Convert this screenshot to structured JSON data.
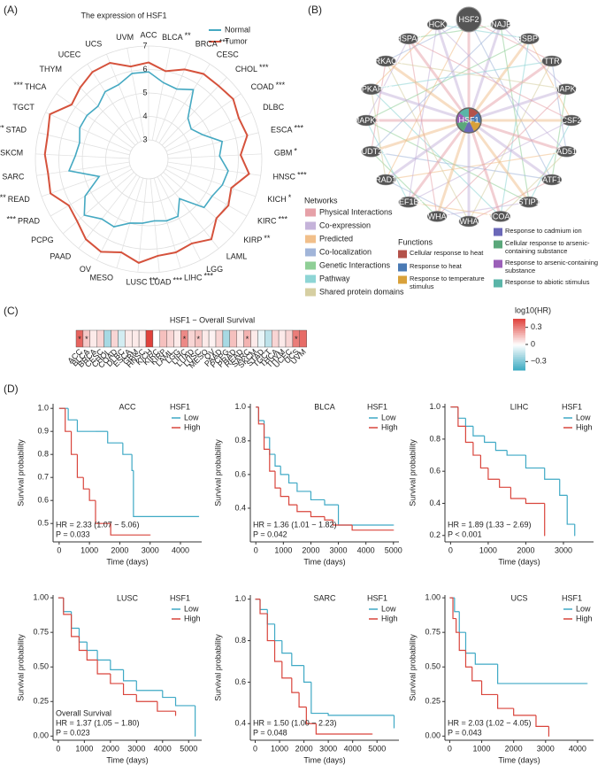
{
  "chart_data": [
    {
      "type": "radar",
      "panel_label": "(A)",
      "title": "The expression of HSF1",
      "categories": [
        "ACC",
        "BLCA",
        "BRCA",
        "CESC",
        "CHOL",
        "COAD",
        "DLBC",
        "ESCA",
        "GBM",
        "HNSC",
        "KICH",
        "KIRC",
        "KIRP",
        "LAML",
        "LGG",
        "LIHC",
        "LUAD",
        "LUSC",
        "MESO",
        "OV",
        "PAAD",
        "PCPG",
        "PRAD",
        "READ",
        "SARC",
        "SKCM",
        "STAD",
        "TGCT",
        "THCA",
        "THYM",
        "UCEC",
        "UCS",
        "UVM"
      ],
      "significance": [
        null,
        "**",
        "***",
        null,
        "***",
        "***",
        null,
        "***",
        "*",
        "***",
        "*",
        "***",
        "**",
        null,
        null,
        "***",
        "***",
        "***",
        null,
        null,
        null,
        null,
        "***",
        "***",
        null,
        null,
        "***",
        null,
        "***",
        null,
        null,
        null,
        null
      ],
      "rlim": [
        3,
        7
      ],
      "rticks": [
        3,
        4,
        5,
        6,
        7
      ],
      "series": [
        {
          "name": "Normal",
          "color": "#45a9c2",
          "values": [
            5.9,
            5.5,
            5.4,
            5.7,
            4.6,
            4.4,
            4.7,
            5.4,
            5.2,
            5.6,
            5.5,
            5.3,
            5.3,
            4.3,
            4.9,
            4.9,
            4.8,
            4.9,
            5.0,
            5.4,
            5.4,
            5.8,
            5.3,
            4.4,
            5.6,
            5.3,
            5.2,
            5.4,
            5.4,
            5.3,
            5.6,
            5.6,
            5.9
          ]
        },
        {
          "name": "Tumor",
          "color": "#d5523c",
          "values": [
            6.3,
            6.0,
            6.3,
            6.5,
            6.5,
            6.6,
            6.4,
            6.5,
            6.1,
            6.5,
            5.9,
            6.1,
            6.0,
            6.5,
            6.2,
            6.3,
            6.3,
            6.6,
            6.3,
            6.6,
            6.5,
            6.2,
            6.1,
            6.6,
            6.5,
            6.6,
            6.6,
            6.8,
            6.2,
            6.4,
            6.6,
            6.6,
            6.2
          ]
        }
      ]
    },
    {
      "type": "network",
      "panel_label": "(B)",
      "center": "HSF1",
      "nodes": [
        "HSF2",
        "DNAJB1",
        "HSBP1",
        "TTR",
        "MAPK8",
        "CSF2",
        "RAD51B",
        "ATF1",
        "STIP1",
        "NCOA6",
        "YWHAE",
        "YWHAB",
        "EEF1B2",
        "RAD1",
        "NUDT21",
        "MAPK3",
        "MAPKAPK2",
        "PRKACA",
        "HSPA8",
        "HCK"
      ],
      "networks_title": "Networks",
      "networks": [
        {
          "name": "Physical Interactions",
          "color": "#e6a1a8"
        },
        {
          "name": "Co-expression",
          "color": "#c5b3da"
        },
        {
          "name": "Predicted",
          "color": "#f1bf8a"
        },
        {
          "name": "Co-localization",
          "color": "#a1b5d9"
        },
        {
          "name": "Genetic Interactions",
          "color": "#8fcf96"
        },
        {
          "name": "Pathway",
          "color": "#8ed5d5"
        },
        {
          "name": "Shared protein domains",
          "color": "#d6cfa2"
        }
      ],
      "functions_title": "Functions",
      "functions": [
        {
          "name": "Cellular response to heat",
          "color": "#b4524a"
        },
        {
          "name": "Response to heat",
          "color": "#4a7ab4"
        },
        {
          "name": "Response to temperature stimulus",
          "color": "#d9a13a"
        },
        {
          "name": "Response to cadmium ion",
          "color": "#6b68b8"
        },
        {
          "name": "Cellular response to arsenic-containing substance",
          "color": "#5aa77a"
        },
        {
          "name": "Response to arsenic-containing substance",
          "color": "#9b5fb8"
        },
        {
          "name": "Response to abiotic stimulus",
          "color": "#5ab5a8"
        }
      ]
    },
    {
      "type": "heatmap",
      "panel_label": "(C)",
      "title": "HSF1 − Overall Survival",
      "categories": [
        "ACC",
        "BLCA",
        "BRCA",
        "CESC",
        "CHOL",
        "COAD",
        "DLBC",
        "ESCA",
        "GBM",
        "HNSC",
        "KICH",
        "KIRC",
        "KIRP",
        "LAML",
        "LGG",
        "LIHC",
        "LUAD",
        "LUSC",
        "MESO",
        "OV",
        "PAAD",
        "PCPG",
        "PRAD",
        "READ",
        "SARC",
        "SKCM",
        "STAD",
        "TGCT",
        "THCA",
        "THYM",
        "UCEC",
        "UCS",
        "UVM"
      ],
      "values": [
        0.37,
        0.13,
        0.05,
        0.1,
        -0.2,
        0.1,
        -0.1,
        0.05,
        0.05,
        0.05,
        0.45,
        0.0,
        0.15,
        0.1,
        0.05,
        0.28,
        0.1,
        0.14,
        0.05,
        0.03,
        0.1,
        -0.2,
        0.15,
        0.05,
        0.18,
        0.05,
        -0.05,
        -0.15,
        0.1,
        0.05,
        0.1,
        0.31,
        0.35
      ],
      "significance": [
        "*",
        "*",
        null,
        null,
        null,
        null,
        null,
        null,
        null,
        null,
        null,
        null,
        null,
        null,
        null,
        "*",
        null,
        "*",
        null,
        null,
        null,
        null,
        null,
        null,
        "*",
        null,
        null,
        null,
        null,
        null,
        null,
        "*",
        null
      ],
      "colorbar_title": "log10(HR)",
      "clim": [
        -0.45,
        0.45
      ],
      "cticks": [
        0.3,
        0,
        {
          "value": -0.3,
          "label": "−0.3"
        }
      ],
      "colors": {
        "low": "#3aa9c1",
        "mid": "#ffffff",
        "high": "#e0423c"
      }
    },
    {
      "type": "km",
      "panel_label": "(D)",
      "title": "ACC",
      "legend_title": "HSF1",
      "xlabel": "Time (days)",
      "ylabel": "Survival probability",
      "xlim": [
        -200,
        4700
      ],
      "xticks": [
        0,
        1000,
        2000,
        3000,
        4000
      ],
      "ylim": [
        0.42,
        1.02
      ],
      "yticks": [
        0.5,
        0.6,
        0.7,
        0.8,
        0.9,
        {
          "value": 1,
          "label": "1.0"
        }
      ],
      "series": [
        {
          "name": "Low",
          "color": "#3fa9c5",
          "x": [
            0,
            300,
            600,
            1200,
            1600,
            2100,
            2400,
            2450,
            4600
          ],
          "values": [
            1,
            0.95,
            0.9,
            0.9,
            0.85,
            0.8,
            0.73,
            0.53,
            0.53
          ]
        },
        {
          "name": "High",
          "color": "#d9453c",
          "x": [
            0,
            200,
            400,
            600,
            800,
            1000,
            1200,
            1600,
            1700,
            3000
          ],
          "values": [
            1,
            0.9,
            0.8,
            0.7,
            0.65,
            0.6,
            0.5,
            0.5,
            0.45,
            0.45
          ]
        }
      ],
      "annotations": [
        "HR = 2.33 (1.07 − 5.06)",
        "P = 0.033"
      ]
    },
    {
      "type": "km",
      "title": "BLCA",
      "legend_title": "HSF1",
      "xlabel": "Time (days)",
      "ylabel": "Survival probability",
      "xlim": [
        -200,
        5200
      ],
      "xticks": [
        0,
        1000,
        2000,
        3000,
        4000,
        5000
      ],
      "ylim": [
        0.2,
        1.02
      ],
      "yticks": [
        0.4,
        0.6,
        0.8,
        {
          "value": 1,
          "label": "1.0"
        }
      ],
      "series": [
        {
          "name": "Low",
          "color": "#3fa9c5",
          "x": [
            0,
            100,
            300,
            500,
            700,
            900,
            1200,
            1500,
            2000,
            2500,
            3000,
            5000
          ],
          "values": [
            1,
            0.92,
            0.82,
            0.72,
            0.65,
            0.6,
            0.55,
            0.5,
            0.45,
            0.42,
            0.3,
            0.3
          ]
        },
        {
          "name": "High",
          "color": "#d9453c",
          "x": [
            0,
            100,
            300,
            500,
            700,
            900,
            1200,
            1500,
            2000,
            2500,
            2800,
            3500,
            5000
          ],
          "values": [
            1,
            0.9,
            0.75,
            0.62,
            0.52,
            0.47,
            0.42,
            0.38,
            0.35,
            0.33,
            0.3,
            0.27,
            0.27
          ]
        }
      ],
      "annotations": [
        "HR = 1.36 (1.01 − 1.82)",
        "P = 0.042"
      ]
    },
    {
      "type": "km",
      "title": "LIHC",
      "legend_title": "HSF1",
      "xlabel": "Time (days)",
      "ylabel": "Survival probability",
      "xlim": [
        -150,
        3800
      ],
      "xticks": [
        0,
        1000,
        2000,
        3000
      ],
      "ylim": [
        0.16,
        1.02
      ],
      "yticks": [
        0.2,
        0.4,
        0.6,
        0.8,
        {
          "value": 1,
          "label": "1.0"
        }
      ],
      "series": [
        {
          "name": "Low",
          "color": "#3fa9c5",
          "x": [
            0,
            200,
            400,
            600,
            900,
            1200,
            1500,
            2000,
            2500,
            2900,
            3100,
            3300
          ],
          "values": [
            1,
            0.93,
            0.88,
            0.82,
            0.78,
            0.73,
            0.7,
            0.62,
            0.55,
            0.45,
            0.27,
            0.2
          ]
        },
        {
          "name": "High",
          "color": "#d9453c",
          "x": [
            0,
            200,
            400,
            600,
            800,
            1000,
            1300,
            1600,
            2000,
            2400,
            2500
          ],
          "values": [
            1,
            0.88,
            0.78,
            0.7,
            0.62,
            0.55,
            0.5,
            0.43,
            0.4,
            0.4,
            0.2
          ]
        }
      ],
      "annotations": [
        "HR = 1.89 (1.33 − 2.69)",
        "P < 0.001"
      ]
    },
    {
      "type": "km",
      "title": "LUSC",
      "legend_title": "HSF1",
      "xlabel": "Time (days)",
      "ylabel": "Survival probability",
      "xlim": [
        -200,
        5500
      ],
      "xticks": [
        0,
        1000,
        2000,
        3000,
        4000,
        5000
      ],
      "ylim": [
        -0.03,
        1.02
      ],
      "yticks": [
        {
          "value": 0,
          "label": "0.00"
        },
        0.25,
        {
          "value": 0.5,
          "label": "0.50"
        },
        0.75,
        {
          "value": 1,
          "label": "1.00"
        }
      ],
      "series": [
        {
          "name": "Low",
          "color": "#3fa9c5",
          "x": [
            0,
            200,
            500,
            800,
            1100,
            1500,
            2000,
            2500,
            3000,
            4000,
            4500,
            5250
          ],
          "values": [
            1,
            0.9,
            0.78,
            0.68,
            0.62,
            0.55,
            0.48,
            0.4,
            0.33,
            0.28,
            0.22,
            0
          ]
        },
        {
          "name": "High",
          "color": "#d9453c",
          "x": [
            0,
            200,
            500,
            800,
            1100,
            1500,
            2000,
            2500,
            3000,
            3800,
            4500
          ],
          "values": [
            1,
            0.88,
            0.72,
            0.62,
            0.55,
            0.45,
            0.38,
            0.3,
            0.25,
            0.18,
            0.15
          ]
        }
      ],
      "annotations": [
        "Overall Survival",
        "HR = 1.37 (1.05 − 1.80)",
        "P = 0.023"
      ]
    },
    {
      "type": "km",
      "title": "SARC",
      "legend_title": "HSF1",
      "xlabel": "Time (days)",
      "ylabel": "Survival probability",
      "xlim": [
        -200,
        5900
      ],
      "xticks": [
        0,
        1000,
        2000,
        3000,
        4000,
        5000
      ],
      "ylim": [
        0.32,
        1.02
      ],
      "yticks": [
        0.4,
        0.6,
        0.8,
        {
          "value": 1,
          "label": "1.0"
        }
      ],
      "series": [
        {
          "name": "Low",
          "color": "#3fa9c5",
          "x": [
            0,
            200,
            500,
            800,
            1100,
            1500,
            2000,
            2300,
            3000,
            5700
          ],
          "values": [
            1,
            0.95,
            0.88,
            0.8,
            0.74,
            0.68,
            0.6,
            0.45,
            0.44,
            0.38
          ]
        },
        {
          "name": "High",
          "color": "#d9453c",
          "x": [
            0,
            200,
            500,
            800,
            1100,
            1500,
            1800,
            2100,
            2500,
            4800
          ],
          "values": [
            1,
            0.93,
            0.8,
            0.7,
            0.62,
            0.55,
            0.48,
            0.4,
            0.35,
            0.35
          ]
        }
      ],
      "annotations": [
        "HR = 1.50 (1.00 − 2.23)",
        "P = 0.048"
      ]
    },
    {
      "type": "km",
      "title": "UCS",
      "legend_title": "HSF1",
      "xlabel": "Time (days)",
      "ylabel": "Survival probability",
      "xlim": [
        -150,
        4500
      ],
      "xticks": [
        0,
        1000,
        2000,
        3000,
        4000
      ],
      "ylim": [
        -0.03,
        1.02
      ],
      "yticks": [
        {
          "value": 0,
          "label": "0.00"
        },
        0.25,
        {
          "value": 0.5,
          "label": "0.50"
        },
        0.75,
        {
          "value": 1,
          "label": "1.00"
        }
      ],
      "series": [
        {
          "name": "Low",
          "color": "#3fa9c5",
          "x": [
            0,
            150,
            300,
            500,
            800,
            1500,
            4300
          ],
          "values": [
            1,
            0.9,
            0.75,
            0.6,
            0.52,
            0.38,
            0.38
          ]
        },
        {
          "name": "High",
          "color": "#d9453c",
          "x": [
            0,
            100,
            200,
            300,
            500,
            700,
            1000,
            1500,
            2000,
            2700,
            3100
          ],
          "values": [
            1,
            0.85,
            0.75,
            0.62,
            0.5,
            0.4,
            0.3,
            0.2,
            0.15,
            0.07,
            0
          ]
        }
      ],
      "annotations": [
        "HR = 2.03 (1.02 − 4.05)",
        "P = 0.043"
      ]
    }
  ]
}
